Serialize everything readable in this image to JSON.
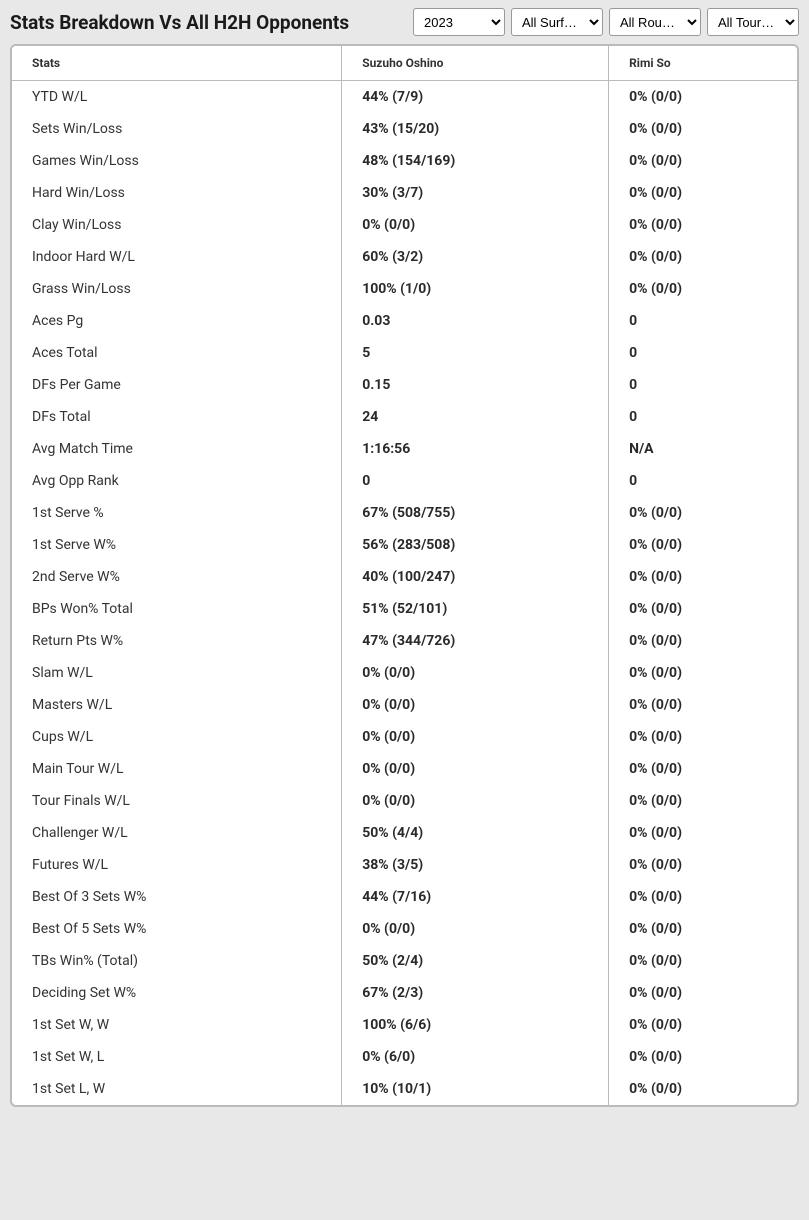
{
  "header": {
    "title": "Stats Breakdown Vs All H2H Opponents"
  },
  "filters": {
    "year": {
      "selected": "2023",
      "options": [
        "2023"
      ]
    },
    "surface": {
      "selected": "All Surf…",
      "options": [
        "All Surf…"
      ]
    },
    "round": {
      "selected": "All Rou…",
      "options": [
        "All Rou…"
      ]
    },
    "tour": {
      "selected": "All Tour…",
      "options": [
        "All Tour…"
      ]
    }
  },
  "table": {
    "columns": {
      "stats": "Stats",
      "player1": "Suzuho Oshino",
      "player2": "Rimi So"
    },
    "rows": [
      {
        "label": "YTD W/L",
        "p1": "44% (7/9)",
        "p2": "0% (0/0)"
      },
      {
        "label": "Sets Win/Loss",
        "p1": "43% (15/20)",
        "p2": "0% (0/0)"
      },
      {
        "label": "Games Win/Loss",
        "p1": "48% (154/169)",
        "p2": "0% (0/0)"
      },
      {
        "label": "Hard Win/Loss",
        "p1": "30% (3/7)",
        "p2": "0% (0/0)"
      },
      {
        "label": "Clay Win/Loss",
        "p1": "0% (0/0)",
        "p2": "0% (0/0)"
      },
      {
        "label": "Indoor Hard W/L",
        "p1": "60% (3/2)",
        "p2": "0% (0/0)"
      },
      {
        "label": "Grass Win/Loss",
        "p1": "100% (1/0)",
        "p2": "0% (0/0)"
      },
      {
        "label": "Aces Pg",
        "p1": "0.03",
        "p2": "0"
      },
      {
        "label": "Aces Total",
        "p1": "5",
        "p2": "0"
      },
      {
        "label": "DFs Per Game",
        "p1": "0.15",
        "p2": "0"
      },
      {
        "label": "DFs Total",
        "p1": "24",
        "p2": "0"
      },
      {
        "label": "Avg Match Time",
        "p1": "1:16:56",
        "p2": "N/A"
      },
      {
        "label": "Avg Opp Rank",
        "p1": "0",
        "p2": "0"
      },
      {
        "label": "1st Serve %",
        "p1": "67% (508/755)",
        "p2": "0% (0/0)"
      },
      {
        "label": "1st Serve W%",
        "p1": "56% (283/508)",
        "p2": "0% (0/0)"
      },
      {
        "label": "2nd Serve W%",
        "p1": "40% (100/247)",
        "p2": "0% (0/0)"
      },
      {
        "label": "BPs Won% Total",
        "p1": "51% (52/101)",
        "p2": "0% (0/0)"
      },
      {
        "label": "Return Pts W%",
        "p1": "47% (344/726)",
        "p2": "0% (0/0)"
      },
      {
        "label": "Slam W/L",
        "p1": "0% (0/0)",
        "p2": "0% (0/0)"
      },
      {
        "label": "Masters W/L",
        "p1": "0% (0/0)",
        "p2": "0% (0/0)"
      },
      {
        "label": "Cups W/L",
        "p1": "0% (0/0)",
        "p2": "0% (0/0)"
      },
      {
        "label": "Main Tour W/L",
        "p1": "0% (0/0)",
        "p2": "0% (0/0)"
      },
      {
        "label": "Tour Finals W/L",
        "p1": "0% (0/0)",
        "p2": "0% (0/0)"
      },
      {
        "label": "Challenger W/L",
        "p1": "50% (4/4)",
        "p2": "0% (0/0)"
      },
      {
        "label": "Futures W/L",
        "p1": "38% (3/5)",
        "p2": "0% (0/0)"
      },
      {
        "label": "Best Of 3 Sets W%",
        "p1": "44% (7/16)",
        "p2": "0% (0/0)"
      },
      {
        "label": "Best Of 5 Sets W%",
        "p1": "0% (0/0)",
        "p2": "0% (0/0)"
      },
      {
        "label": "TBs Win% (Total)",
        "p1": "50% (2/4)",
        "p2": "0% (0/0)"
      },
      {
        "label": "Deciding Set W%",
        "p1": "67% (2/3)",
        "p2": "0% (0/0)"
      },
      {
        "label": "1st Set W, W",
        "p1": "100% (6/6)",
        "p2": "0% (0/0)"
      },
      {
        "label": "1st Set W, L",
        "p1": "0% (6/0)",
        "p2": "0% (0/0)"
      },
      {
        "label": "1st Set L, W",
        "p1": "10% (10/1)",
        "p2": "0% (0/0)"
      }
    ]
  }
}
